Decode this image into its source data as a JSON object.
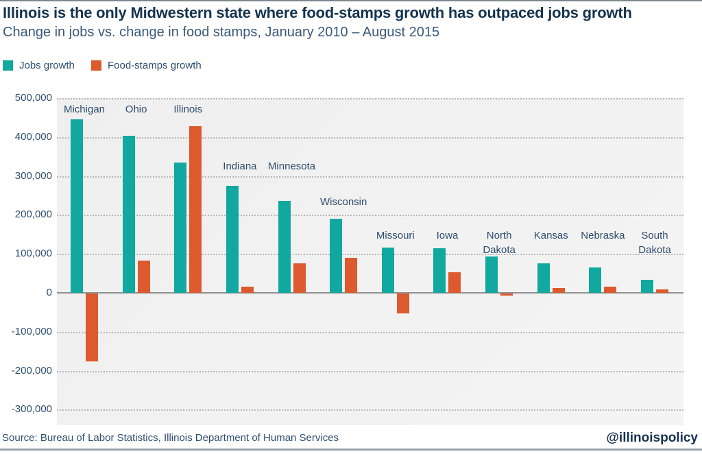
{
  "header": {
    "title": "Illinois is the only Midwestern state where food-stamps growth has outpaced jobs growth",
    "subtitle": "Change in jobs vs. change in food stamps, January 2010 – August 2015"
  },
  "legend": {
    "items": [
      {
        "label": "Jobs growth",
        "color": "#11a89f"
      },
      {
        "label": "Food-stamps growth",
        "color": "#dc5a2d"
      }
    ]
  },
  "chart_data": {
    "type": "bar",
    "title": "Illinois is the only Midwestern state where food-stamps growth has outpaced jobs growth",
    "subtitle": "Change in jobs vs. change in food stamps, January 2010 – August 2015",
    "categories": [
      "Michigan",
      "Ohio",
      "Illinois",
      "Indiana",
      "Minnesota",
      "Wisconsin",
      "Missouri",
      "Iowa",
      "North Dakota",
      "Kansas",
      "Nebraska",
      "South Dakota"
    ],
    "series": [
      {
        "name": "Jobs growth",
        "color": "#11a89f",
        "values": [
          445000,
          403000,
          335000,
          275000,
          236000,
          190000,
          117000,
          114000,
          93000,
          76000,
          65000,
          33000
        ]
      },
      {
        "name": "Food-stamps growth",
        "color": "#dc5a2d",
        "values": [
          -175000,
          83000,
          428000,
          15000,
          76000,
          90000,
          -51000,
          52000,
          -5000,
          12000,
          16000,
          8000
        ]
      }
    ],
    "xlabel": "",
    "ylabel": "",
    "ylim": [
      -300000,
      500000
    ],
    "ytick_step": 100000,
    "y_ticks": [
      500000,
      400000,
      300000,
      200000,
      100000,
      0,
      -100000,
      -200000,
      -300000
    ],
    "y_tick_labels": [
      "500,000",
      "400,000",
      "300,000",
      "200,000",
      "100,000",
      "0",
      "-100,000",
      "-200,000",
      "-300,000"
    ],
    "grid": "dotted-horizontal",
    "legend_position": "top-left",
    "two_line_labels": [
      "North Dakota",
      "South Dakota"
    ]
  },
  "footer": {
    "source": "Source: Bureau of Labor Statistics, Illinois Department of Human Services",
    "handle": "@illinoispolicy"
  }
}
